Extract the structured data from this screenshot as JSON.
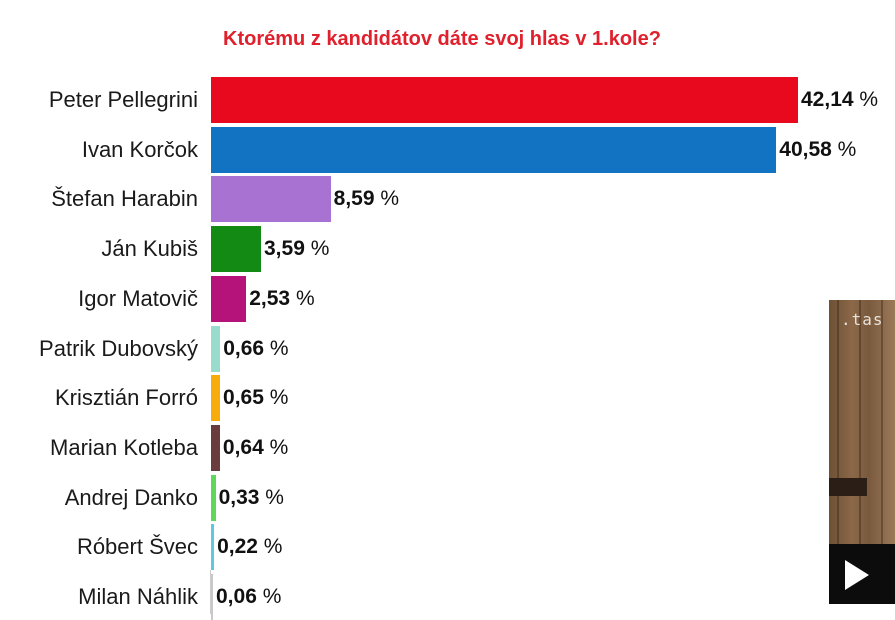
{
  "chart_data": {
    "type": "bar",
    "orientation": "horizontal",
    "title": "Ktorému z kandidátov dáte svoj hlas v 1.kole?",
    "categories": [
      "Peter Pellegrini",
      "Ivan Korčok",
      "Štefan Harabin",
      "Ján Kubiš",
      "Igor Matovič",
      "Patrik Dubovský",
      "Krisztián Forró",
      "Marian Kotleba",
      "Andrej Danko",
      "Róbert Švec",
      "Milan Náhlik"
    ],
    "values": [
      42.14,
      40.58,
      8.59,
      3.59,
      2.53,
      0.66,
      0.65,
      0.64,
      0.33,
      0.22,
      0.06
    ],
    "value_labels": [
      "42,14",
      "40,58",
      "8,59",
      "3,59",
      "2,53",
      "0,66",
      "0,65",
      "0,64",
      "0,33",
      "0,22",
      "0,06"
    ],
    "unit": "%",
    "colors": [
      "#e8091f",
      "#1273c2",
      "#a872d2",
      "#138a13",
      "#b5127a",
      "#99dccb",
      "#f7ac0c",
      "#6b3c3e",
      "#5dd85a",
      "#5ec8e0",
      "#c8c8c8"
    ]
  },
  "video": {
    "logo_text": ".tas",
    "play_icon": "play-icon"
  }
}
